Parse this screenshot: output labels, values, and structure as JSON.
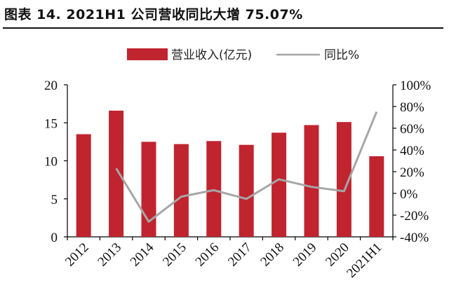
{
  "title": "图表 14. 2021H1 公司营收同比大增 75.07%",
  "colors": {
    "bar": "#c0242e",
    "line": "#a6a6a6",
    "axis": "#000000"
  },
  "chart_data": {
    "type": "bar",
    "categories": [
      "2012",
      "2013",
      "2014",
      "2015",
      "2016",
      "2017",
      "2018",
      "2019",
      "2020",
      "2021H1"
    ],
    "series": [
      {
        "name": "营业收入(亿元)",
        "type": "bar",
        "axis": "left",
        "values": [
          13.5,
          16.6,
          12.5,
          12.2,
          12.6,
          12.1,
          13.7,
          14.7,
          15.1,
          10.6
        ]
      },
      {
        "name": "同比%",
        "type": "line",
        "axis": "right",
        "values": [
          null,
          23,
          -26,
          -3,
          3,
          -5,
          13,
          6,
          2,
          75.07
        ]
      }
    ],
    "y_left": {
      "min": 0,
      "max": 20,
      "ticks": [
        "0",
        "5",
        "10",
        "15",
        "20"
      ]
    },
    "y_right": {
      "min": -40,
      "max": 100,
      "ticks": [
        "-40%",
        "-20%",
        "0%",
        "20%",
        "40%",
        "60%",
        "80%",
        "100%"
      ]
    },
    "legend_position": "top",
    "grid": false
  }
}
